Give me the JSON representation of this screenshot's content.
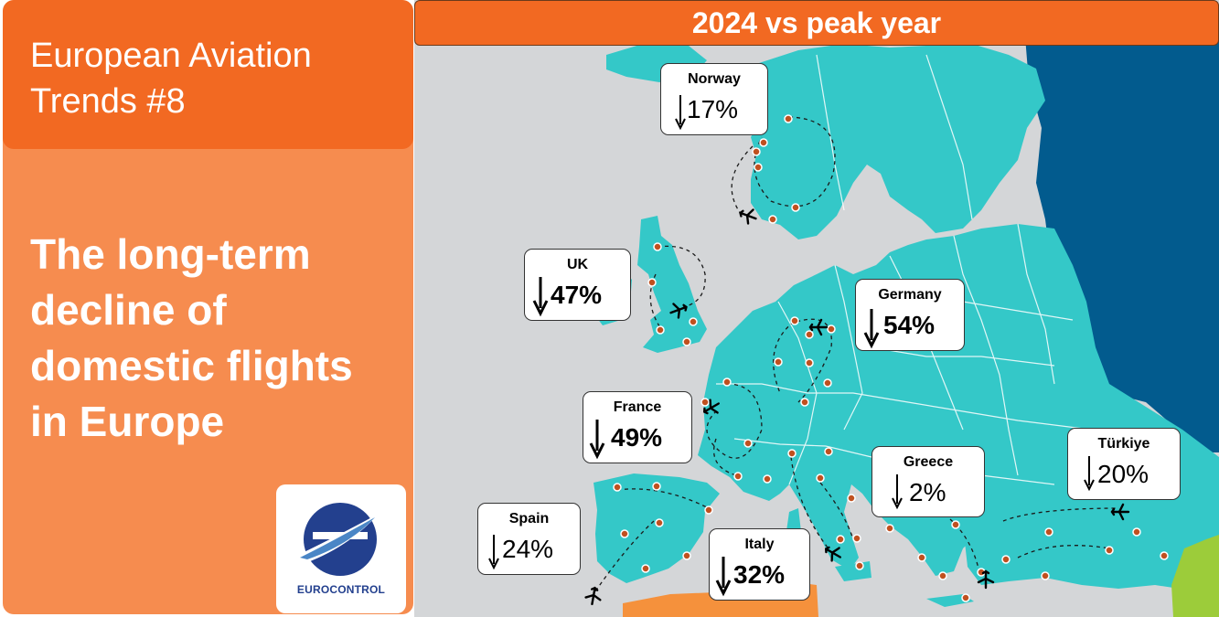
{
  "sidebar": {
    "series_title": "European Aviation Trends #8",
    "main_title": "The long-term decline of domestic flights in Europe",
    "logo_text": "EUROCONTROL"
  },
  "map": {
    "title": "2024 vs peak year",
    "callouts": [
      {
        "country": "Norway",
        "change": "17%",
        "direction": "down"
      },
      {
        "country": "UK",
        "change": "47%",
        "direction": "down"
      },
      {
        "country": "Germany",
        "change": "54%",
        "direction": "down"
      },
      {
        "country": "France",
        "change": "49%",
        "direction": "down"
      },
      {
        "country": "Greece",
        "change": "2%",
        "direction": "down"
      },
      {
        "country": "Türkiye",
        "change": "20%",
        "direction": "down"
      },
      {
        "country": "Spain",
        "change": "24%",
        "direction": "down"
      },
      {
        "country": "Italy",
        "change": "32%",
        "direction": "down"
      }
    ]
  },
  "colors": {
    "sidebar_bg": "#f68c4f",
    "header_bg": "#f26922",
    "land": "#34c8c8",
    "sea_dark": "#025b8e",
    "grey_land": "#d4d6d8",
    "africa": "#f5913c",
    "middle_east": "#9ccc3a",
    "marker": "#c0501f"
  },
  "icons": [
    "plane-icon",
    "down-arrow-icon",
    "eurocontrol-logo"
  ]
}
